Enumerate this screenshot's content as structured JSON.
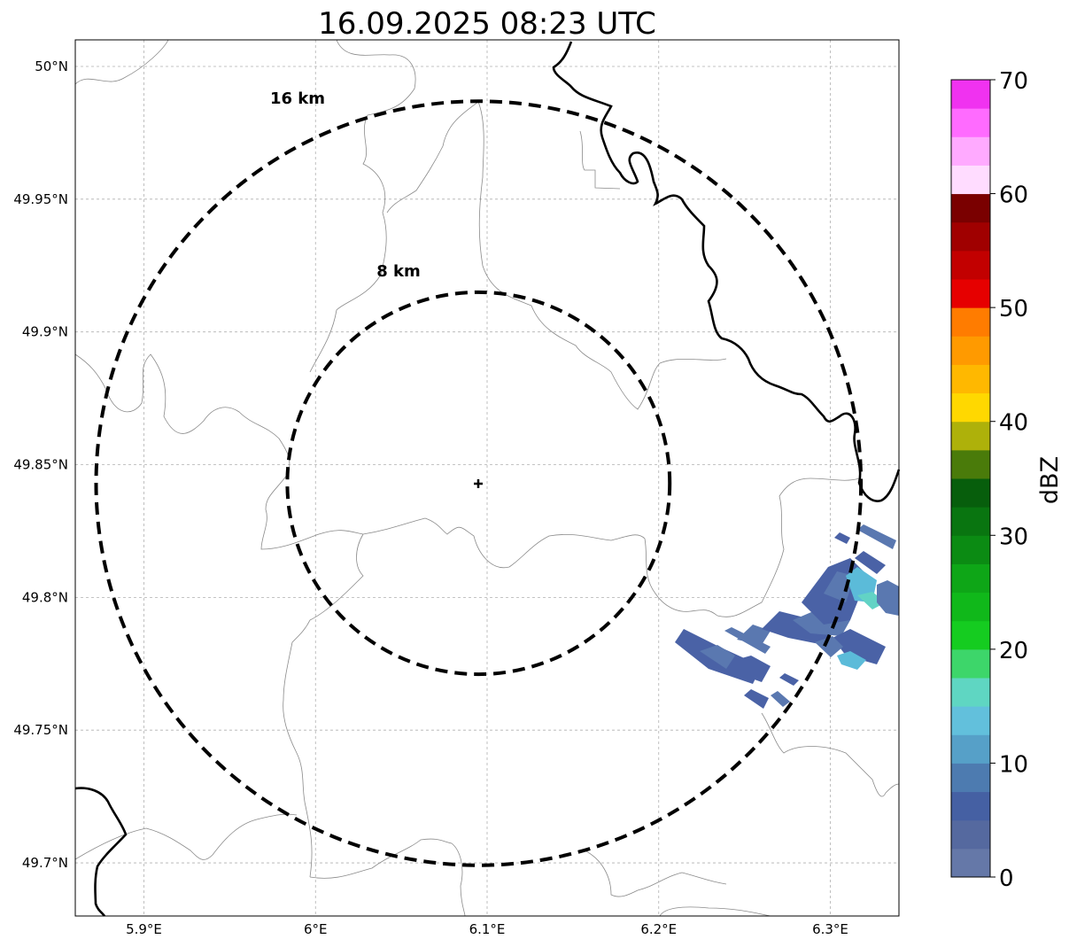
{
  "title": "16.09.2025 08:23 UTC",
  "map": {
    "lon_range": [
      5.86,
      6.34
    ],
    "lat_range": [
      49.68,
      50.01
    ],
    "center": {
      "lon": 6.095,
      "lat": 49.843
    },
    "lon_ticks": [
      {
        "value": 5.9,
        "label": "5.9°E"
      },
      {
        "value": 6.0,
        "label": "6°E"
      },
      {
        "value": 6.1,
        "label": "6.1°E"
      },
      {
        "value": 6.2,
        "label": "6.2°E"
      },
      {
        "value": 6.3,
        "label": "6.3°E"
      }
    ],
    "lat_ticks": [
      {
        "value": 50.0,
        "label": "50°N"
      },
      {
        "value": 49.95,
        "label": "49.95°N"
      },
      {
        "value": 49.9,
        "label": "49.9°N"
      },
      {
        "value": 49.85,
        "label": "49.85°N"
      },
      {
        "value": 49.8,
        "label": "49.8°N"
      },
      {
        "value": 49.75,
        "label": "49.75°N"
      },
      {
        "value": 49.7,
        "label": "49.7°N"
      }
    ],
    "range_rings": [
      {
        "radius_km": 8,
        "label": "8 km"
      },
      {
        "radius_km": 16,
        "label": "16 km"
      }
    ],
    "echo_colors": {
      "weak": "#4a62a6",
      "light": "#5a78b0",
      "medium": "#5bbbd9",
      "teal": "#62d3c5"
    }
  },
  "colorbar": {
    "label": "dBZ",
    "min": 0,
    "max": 70,
    "step": 2.5,
    "ticks": [
      {
        "value": 0,
        "label": "0"
      },
      {
        "value": 10,
        "label": "10"
      },
      {
        "value": 20,
        "label": "20"
      },
      {
        "value": 30,
        "label": "30"
      },
      {
        "value": 40,
        "label": "40"
      },
      {
        "value": 50,
        "label": "50"
      },
      {
        "value": 60,
        "label": "60"
      },
      {
        "value": 70,
        "label": "70"
      }
    ],
    "colors": [
      "#6578a8",
      "#55699f",
      "#4560a3",
      "#4d7bb0",
      "#56a0c8",
      "#62c0dc",
      "#5fd6c2",
      "#3dd66a",
      "#15cc20",
      "#10b81a",
      "#0ea617",
      "#0b8b13",
      "#097510",
      "#075e0c",
      "#4a7b0a",
      "#aeb10a",
      "#ffd800",
      "#ffb800",
      "#ff9a00",
      "#ff7c00",
      "#e60000",
      "#c20000",
      "#a00000",
      "#7a0000",
      "#ffdcff",
      "#ffaaff",
      "#ff6bff",
      "#f032f0"
    ]
  }
}
